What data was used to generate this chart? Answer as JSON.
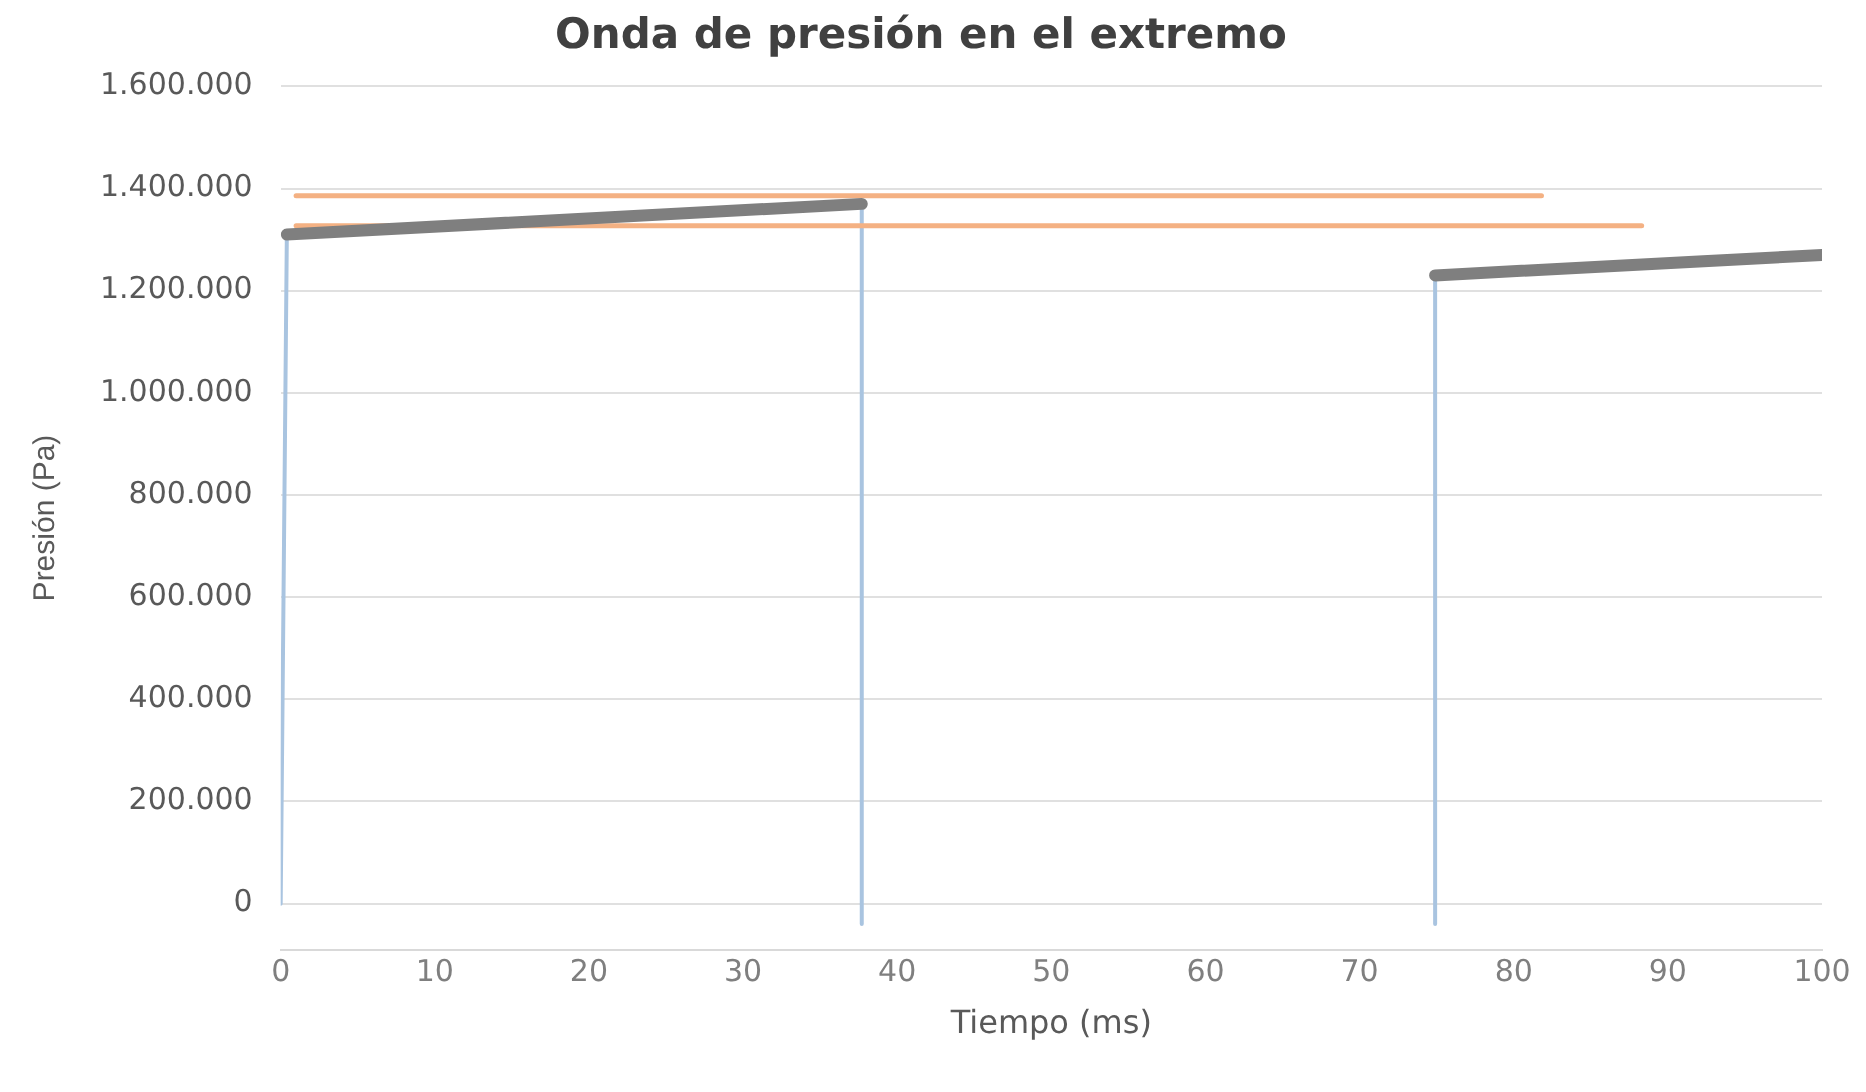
{
  "chart_data": {
    "type": "line",
    "title": "Onda de presión en el extremo",
    "xlabel": "Tiempo (ms)",
    "ylabel": "Presión (Pa)",
    "xlim": [
      0,
      100
    ],
    "xticks": [
      0,
      10,
      20,
      30,
      40,
      50,
      60,
      70,
      80,
      90,
      100
    ],
    "ylim": [
      -90000,
      1600000
    ],
    "yticks": [
      {
        "value": 0,
        "label": "0"
      },
      {
        "value": 200000,
        "label": "200.000"
      },
      {
        "value": 400000,
        "label": "400.000"
      },
      {
        "value": 600000,
        "label": "600.000"
      },
      {
        "value": 800000,
        "label": "800.000"
      },
      {
        "value": 1000000,
        "label": "1.000.000"
      },
      {
        "value": 1200000,
        "label": "1.200.000"
      },
      {
        "value": 1400000,
        "label": "1.400.000"
      },
      {
        "value": 1600000,
        "label": "1.600.000"
      }
    ],
    "grid": "y",
    "legend": false,
    "marker": "none",
    "line_style": "solid",
    "series": [
      {
        "color": "#a9c4e0",
        "x": [
          0,
          0.4,
          37.7,
          37.7,
          56,
          74.9,
          74.9
        ],
        "values": [
          0,
          1310000,
          1370000,
          -40000,
          null,
          -40000,
          1230000
        ]
      },
      {
        "color": "#f4b183",
        "x": [
          1,
          81.8
        ],
        "values": [
          1386000,
          1386000
        ]
      },
      {
        "color": "#f4b183",
        "x": [
          1,
          88.3
        ],
        "values": [
          1327000,
          1327000
        ]
      },
      {
        "color": "#7f7f7f",
        "x": [
          0.4,
          37.7,
          56,
          74.9,
          100
        ],
        "values": [
          1310000,
          1370000,
          null,
          1230000,
          1270000
        ]
      }
    ]
  }
}
